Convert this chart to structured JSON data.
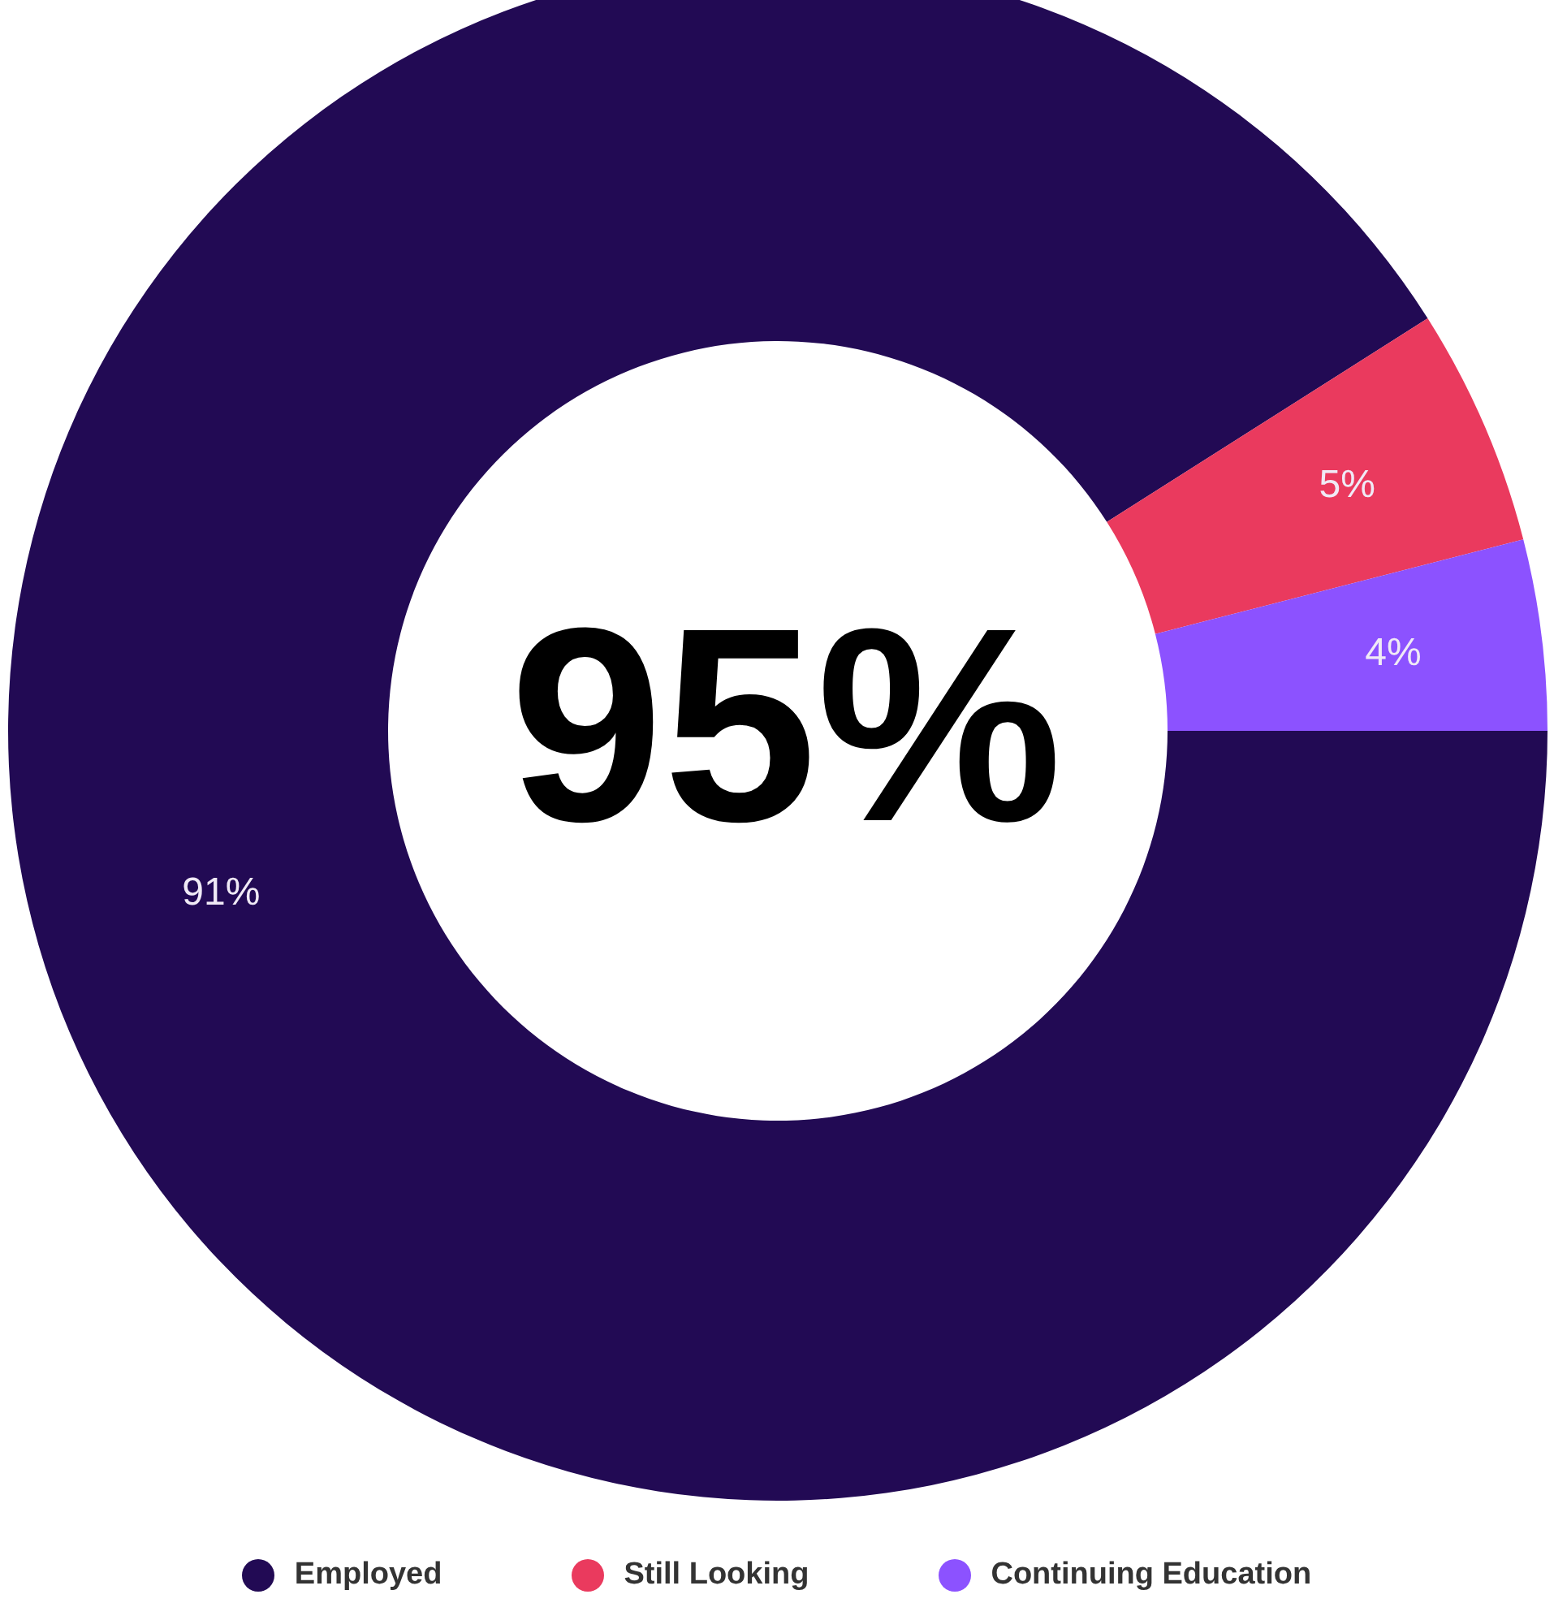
{
  "chart_data": {
    "type": "donut",
    "categories": [
      "Employed",
      "Still Looking",
      "Continuing Education"
    ],
    "values": [
      91,
      5,
      4
    ],
    "colors": [
      "#220a54",
      "#ea3a5e",
      "#8c52ff"
    ],
    "value_labels": [
      "91%",
      "5%",
      "4%"
    ],
    "annotations": [
      "95%"
    ],
    "legend": "bottom"
  }
}
